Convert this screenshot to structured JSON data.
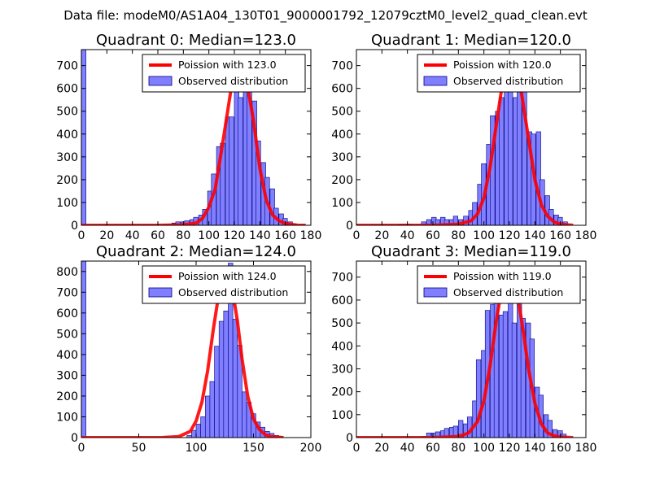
{
  "figure": {
    "suptitle": "Data file: modeM0/AS1A04_130T01_9000001792_12079cztM0_level2_quad_clean.evt"
  },
  "colors": {
    "bar_fill": "#7f7fff",
    "bar_edge": "#00007f",
    "curve": "#ff0000",
    "axis": "#000000"
  },
  "chart_data": [
    {
      "type": "bar",
      "title": "Quadrant 0: Median=123.0",
      "legend": {
        "placement": "upper-right",
        "curve_label": "Poission with 123.0",
        "bar_label": "Observed distribution"
      },
      "xlim": [
        0,
        180
      ],
      "ylim": [
        0,
        770
      ],
      "xticks": [
        0,
        20,
        40,
        60,
        80,
        100,
        120,
        140,
        160,
        180
      ],
      "yticks": [
        0,
        100,
        200,
        300,
        400,
        500,
        600,
        700
      ],
      "edge_bar": {
        "x": 0,
        "width": 3.6,
        "value": 770
      },
      "bin_start": 0,
      "bin_width": 3.6,
      "counts": [
        770,
        0,
        0,
        0,
        0,
        0,
        0,
        0,
        0,
        0,
        0,
        0,
        0,
        0,
        0,
        0,
        0,
        0,
        0,
        0,
        0,
        0,
        0,
        0,
        0,
        0,
        0,
        0,
        0,
        0,
        0,
        0,
        0,
        0,
        0,
        0,
        0,
        0,
        0,
        0,
        0,
        0,
        0,
        0,
        0,
        0,
        0,
        0,
        0,
        0,
        0,
        0,
        0,
        0,
        0,
        0,
        0,
        0,
        0,
        0,
        0,
        0,
        0,
        0,
        0,
        0,
        0,
        0,
        0,
        0,
        0,
        0,
        0,
        0,
        0,
        0,
        0,
        0,
        0,
        0,
        0,
        0,
        0,
        0,
        0,
        0,
        0,
        0,
        0,
        0,
        0,
        0,
        0,
        0,
        0,
        0,
        0,
        0,
        0,
        0,
        0,
        0,
        0,
        0,
        0,
        0,
        0,
        0,
        0,
        0,
        0,
        0,
        0,
        0,
        0,
        0,
        0,
        0,
        0,
        0,
        0,
        0,
        0,
        0,
        0,
        0,
        0,
        0,
        0,
        0,
        0,
        0,
        0,
        0,
        0,
        0,
        0,
        0,
        0,
        0,
        0,
        0,
        0,
        0,
        0,
        0,
        0,
        0,
        0,
        0,
        0,
        0,
        0,
        0,
        0,
        0,
        0,
        0,
        0,
        0,
        0,
        0,
        0,
        0,
        0,
        0,
        0,
        0,
        0,
        0,
        0,
        0,
        0,
        0,
        0,
        0,
        0,
        0,
        0,
        0,
        0,
        0,
        0,
        0,
        0,
        0,
        0,
        0,
        0,
        0,
        0,
        0,
        0,
        0,
        0,
        0,
        0
      ],
      "bins": [
        [
          64,
          2
        ],
        [
          67,
          2
        ],
        [
          71,
          10
        ],
        [
          74,
          15
        ],
        [
          78,
          15
        ],
        [
          81,
          20
        ],
        [
          85,
          25
        ],
        [
          88,
          35
        ],
        [
          92,
          45
        ],
        [
          95,
          70
        ],
        [
          99,
          150
        ],
        [
          102,
          225
        ],
        [
          106,
          345
        ],
        [
          109,
          360
        ],
        [
          113,
          475
        ],
        [
          116,
          475
        ],
        [
          120,
          600
        ],
        [
          123,
          560
        ],
        [
          127,
          745
        ],
        [
          130,
          595
        ],
        [
          134,
          545
        ],
        [
          137,
          370
        ],
        [
          141,
          275
        ],
        [
          144,
          210
        ],
        [
          148,
          160
        ],
        [
          151,
          75
        ],
        [
          155,
          50
        ],
        [
          158,
          30
        ],
        [
          162,
          15
        ],
        [
          165,
          5
        ]
      ],
      "curve": [
        [
          0,
          0
        ],
        [
          60,
          0
        ],
        [
          80,
          2
        ],
        [
          90,
          10
        ],
        [
          95,
          30
        ],
        [
          100,
          80
        ],
        [
          105,
          160
        ],
        [
          110,
          330
        ],
        [
          115,
          510
        ],
        [
          120,
          690
        ],
        [
          123,
          740
        ],
        [
          127,
          700
        ],
        [
          130,
          620
        ],
        [
          135,
          460
        ],
        [
          140,
          250
        ],
        [
          145,
          110
        ],
        [
          150,
          45
        ],
        [
          155,
          20
        ],
        [
          160,
          8
        ],
        [
          170,
          0
        ],
        [
          176,
          0
        ]
      ]
    },
    {
      "type": "bar",
      "title": "Quadrant 1: Median=120.0",
      "legend": {
        "placement": "upper-right",
        "curve_label": "Poission with 120.0",
        "bar_label": "Observed distribution"
      },
      "xlim": [
        0,
        180
      ],
      "ylim": [
        0,
        770
      ],
      "xticks": [
        0,
        20,
        40,
        60,
        80,
        100,
        120,
        140,
        160,
        180
      ],
      "yticks": [
        0,
        100,
        200,
        300,
        400,
        500,
        600,
        700
      ],
      "edge_bar": {
        "x": 0,
        "width": 0,
        "value": 0
      },
      "bins": [
        [
          33,
          5
        ],
        [
          37,
          5
        ],
        [
          40,
          5
        ],
        [
          51,
          15
        ],
        [
          55,
          25
        ],
        [
          59,
          35
        ],
        [
          62,
          25
        ],
        [
          66,
          35
        ],
        [
          69,
          25
        ],
        [
          73,
          25
        ],
        [
          76,
          40
        ],
        [
          80,
          25
        ],
        [
          84,
          40
        ],
        [
          88,
          65
        ],
        [
          91,
          100
        ],
        [
          95,
          180
        ],
        [
          98,
          270
        ],
        [
          102,
          355
        ],
        [
          105,
          480
        ],
        [
          109,
          500
        ],
        [
          112,
          560
        ],
        [
          116,
          680
        ],
        [
          119,
          620
        ],
        [
          123,
          560
        ],
        [
          126,
          745
        ],
        [
          130,
          650
        ],
        [
          134,
          410
        ],
        [
          137,
          400
        ],
        [
          141,
          410
        ],
        [
          144,
          200
        ],
        [
          148,
          130
        ],
        [
          151,
          70
        ],
        [
          155,
          45
        ],
        [
          158,
          35
        ],
        [
          162,
          15
        ]
      ],
      "curve": [
        [
          0,
          0
        ],
        [
          60,
          0
        ],
        [
          80,
          5
        ],
        [
          90,
          20
        ],
        [
          95,
          50
        ],
        [
          100,
          120
        ],
        [
          105,
          260
        ],
        [
          110,
          450
        ],
        [
          115,
          640
        ],
        [
          120,
          740
        ],
        [
          123,
          735
        ],
        [
          127,
          660
        ],
        [
          130,
          560
        ],
        [
          135,
          380
        ],
        [
          140,
          200
        ],
        [
          145,
          90
        ],
        [
          150,
          40
        ],
        [
          155,
          15
        ],
        [
          160,
          5
        ],
        [
          170,
          0
        ]
      ]
    },
    {
      "type": "bar",
      "title": "Quadrant 2: Median=124.0",
      "legend": {
        "placement": "upper-right",
        "curve_label": "Poission with 124.0",
        "bar_label": "Observed distribution"
      },
      "xlim": [
        0,
        200
      ],
      "ylim": [
        0,
        850
      ],
      "xticks": [
        0,
        50,
        100,
        150,
        200
      ],
      "yticks": [
        0,
        100,
        200,
        300,
        400,
        500,
        600,
        700,
        800
      ],
      "edge_bar": {
        "x": 0,
        "width": 4,
        "value": 850
      },
      "bins": [
        [
          72,
          5
        ],
        [
          92,
          10
        ],
        [
          96,
          35
        ],
        [
          100,
          65
        ],
        [
          104,
          100
        ],
        [
          108,
          200
        ],
        [
          112,
          270
        ],
        [
          116,
          440
        ],
        [
          120,
          560
        ],
        [
          124,
          610
        ],
        [
          128,
          840
        ],
        [
          132,
          570
        ],
        [
          136,
          445
        ],
        [
          140,
          220
        ],
        [
          144,
          170
        ],
        [
          148,
          115
        ],
        [
          152,
          75
        ],
        [
          156,
          50
        ],
        [
          160,
          30
        ],
        [
          164,
          20
        ],
        [
          168,
          10
        ],
        [
          172,
          5
        ]
      ],
      "curve": [
        [
          0,
          0
        ],
        [
          70,
          0
        ],
        [
          85,
          5
        ],
        [
          95,
          30
        ],
        [
          100,
          80
        ],
        [
          105,
          170
        ],
        [
          110,
          320
        ],
        [
          115,
          520
        ],
        [
          120,
          700
        ],
        [
          124,
          800
        ],
        [
          128,
          790
        ],
        [
          132,
          700
        ],
        [
          136,
          560
        ],
        [
          140,
          380
        ],
        [
          145,
          200
        ],
        [
          150,
          90
        ],
        [
          155,
          40
        ],
        [
          160,
          15
        ],
        [
          165,
          5
        ],
        [
          176,
          0
        ]
      ]
    },
    {
      "type": "bar",
      "title": "Quadrant 3: Median=119.0",
      "legend": {
        "placement": "upper-right",
        "curve_label": "Poission with 119.0",
        "bar_label": "Observed distribution"
      },
      "xlim": [
        0,
        180
      ],
      "ylim": [
        0,
        770
      ],
      "xticks": [
        0,
        20,
        40,
        60,
        80,
        100,
        120,
        140,
        160,
        180
      ],
      "yticks": [
        0,
        100,
        200,
        300,
        400,
        500,
        600,
        700
      ],
      "edge_bar": {
        "x": 0,
        "width": 0,
        "value": 0
      },
      "bins": [
        [
          51,
          5
        ],
        [
          55,
          20
        ],
        [
          59,
          20
        ],
        [
          62,
          25
        ],
        [
          66,
          30
        ],
        [
          69,
          40
        ],
        [
          73,
          45
        ],
        [
          76,
          50
        ],
        [
          80,
          75
        ],
        [
          84,
          60
        ],
        [
          87,
          90
        ],
        [
          91,
          160
        ],
        [
          94,
          340
        ],
        [
          98,
          380
        ],
        [
          101,
          555
        ],
        [
          105,
          580
        ],
        [
          108,
          650
        ],
        [
          112,
          535
        ],
        [
          115,
          550
        ],
        [
          119,
          745
        ],
        [
          122,
          500
        ],
        [
          126,
          590
        ],
        [
          129,
          520
        ],
        [
          133,
          500
        ],
        [
          136,
          430
        ],
        [
          140,
          220
        ],
        [
          143,
          185
        ],
        [
          147,
          100
        ],
        [
          150,
          75
        ],
        [
          154,
          35
        ],
        [
          158,
          30
        ],
        [
          161,
          15
        ]
      ],
      "curve": [
        [
          0,
          0
        ],
        [
          60,
          0
        ],
        [
          80,
          5
        ],
        [
          88,
          20
        ],
        [
          95,
          70
        ],
        [
          100,
          160
        ],
        [
          105,
          320
        ],
        [
          110,
          520
        ],
        [
          115,
          680
        ],
        [
          119,
          745
        ],
        [
          123,
          700
        ],
        [
          127,
          600
        ],
        [
          131,
          460
        ],
        [
          135,
          300
        ],
        [
          140,
          150
        ],
        [
          145,
          60
        ],
        [
          150,
          20
        ],
        [
          155,
          8
        ],
        [
          160,
          2
        ],
        [
          170,
          0
        ]
      ]
    }
  ]
}
